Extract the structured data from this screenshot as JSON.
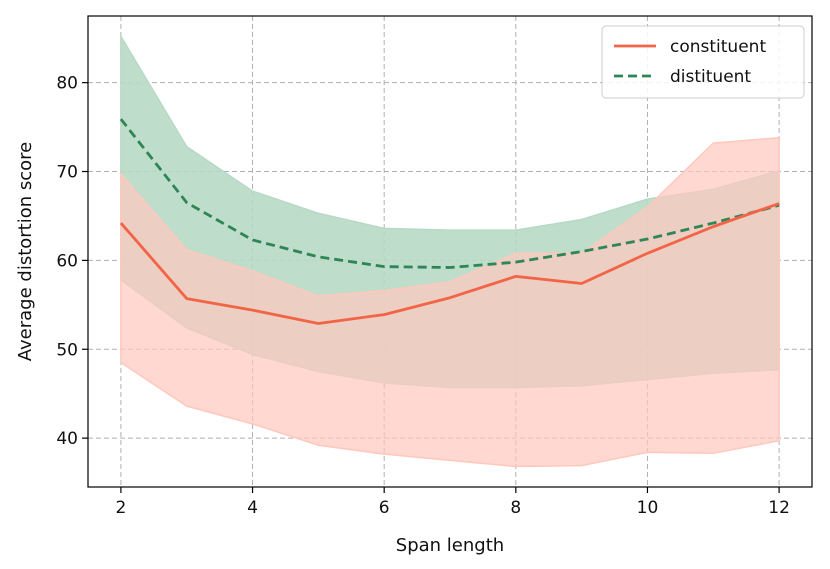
{
  "chart_data": {
    "type": "line",
    "title": "",
    "xlabel": "Span length",
    "ylabel": "Average distortion score",
    "xlim": [
      1.5,
      12.5
    ],
    "ylim": [
      34.5,
      87.5
    ],
    "xticks": [
      2,
      4,
      6,
      8,
      10,
      12
    ],
    "yticks": [
      40,
      50,
      60,
      70,
      80
    ],
    "grid": true,
    "legend_position": "top-right",
    "x": [
      2,
      3,
      4,
      5,
      6,
      7,
      8,
      9,
      10,
      11,
      12
    ],
    "series": [
      {
        "name": "constituent",
        "color": "#f26446",
        "band_color": "#ffc8bd",
        "line_style": "solid",
        "values": [
          64.2,
          55.7,
          54.4,
          52.9,
          53.9,
          55.8,
          58.2,
          57.4,
          60.8,
          63.8,
          66.4
        ],
        "upper": [
          69.7,
          61.2,
          58.8,
          56.0,
          56.6,
          57.6,
          60.8,
          60.8,
          66.0,
          73.2,
          73.8
        ],
        "lower": [
          48.5,
          43.6,
          41.6,
          39.2,
          38.2,
          37.5,
          36.8,
          36.9,
          38.4,
          38.3,
          39.7
        ]
      },
      {
        "name": "distituent",
        "color": "#2e8555",
        "band_color": "#b7d9c5",
        "line_style": "dashed",
        "values": [
          75.9,
          66.5,
          62.3,
          60.4,
          59.3,
          59.2,
          59.8,
          61.0,
          62.4,
          64.2,
          66.2
        ],
        "upper": [
          85.2,
          72.8,
          67.8,
          65.3,
          63.6,
          63.4,
          63.4,
          64.6,
          66.9,
          68.0,
          70.1
        ],
        "lower": [
          57.8,
          52.4,
          49.4,
          47.5,
          46.2,
          45.7,
          45.7,
          45.9,
          46.6,
          47.3,
          47.7
        ]
      }
    ]
  }
}
